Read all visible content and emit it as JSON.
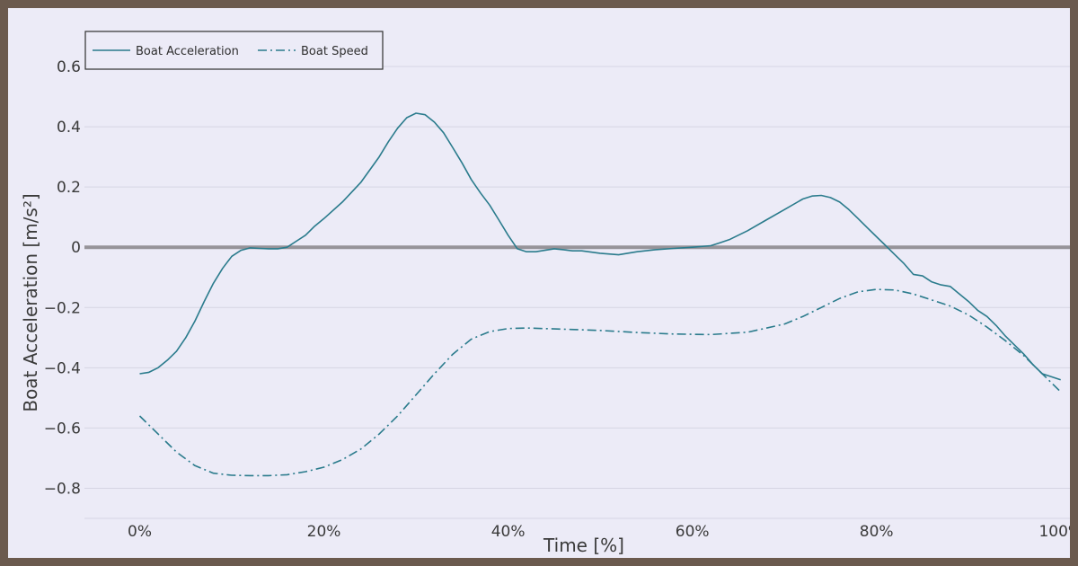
{
  "chart_data": {
    "type": "line",
    "xlabel": "Time [%]",
    "ylabel": "Boat Acceleration [m/s²]",
    "xlim": [
      -0.06,
      1.01
    ],
    "ylim": [
      -0.9,
      0.6
    ],
    "x_tick_values": [
      0,
      0.2,
      0.4,
      0.6,
      0.8,
      1.0
    ],
    "x_tick_labels": [
      "0%",
      "20%",
      "40%",
      "60%",
      "80%",
      "100%"
    ],
    "y_tick_values": [
      0.6,
      0.4,
      0.2,
      0,
      -0.2,
      -0.4,
      -0.6,
      -0.8
    ],
    "y_tick_labels": [
      "0.6",
      "0.4",
      "0.2",
      "0",
      "−0.2",
      "−0.4",
      "−0.6",
      "−0.8"
    ],
    "grid": true,
    "zero_line": true,
    "legend_position": "top-left",
    "series": [
      {
        "name": "Boat Acceleration",
        "color": "#2a7b8c",
        "dash": "solid",
        "x": [
          0,
          0.01,
          0.02,
          0.03,
          0.04,
          0.05,
          0.06,
          0.07,
          0.08,
          0.09,
          0.1,
          0.11,
          0.12,
          0.13,
          0.14,
          0.15,
          0.16,
          0.17,
          0.18,
          0.19,
          0.2,
          0.22,
          0.24,
          0.26,
          0.27,
          0.28,
          0.29,
          0.3,
          0.31,
          0.32,
          0.33,
          0.34,
          0.35,
          0.36,
          0.37,
          0.38,
          0.39,
          0.4,
          0.41,
          0.42,
          0.43,
          0.44,
          0.45,
          0.46,
          0.47,
          0.48,
          0.5,
          0.52,
          0.54,
          0.56,
          0.58,
          0.6,
          0.62,
          0.63,
          0.64,
          0.66,
          0.68,
          0.7,
          0.72,
          0.73,
          0.74,
          0.75,
          0.76,
          0.77,
          0.78,
          0.79,
          0.8,
          0.81,
          0.82,
          0.83,
          0.84,
          0.85,
          0.86,
          0.87,
          0.88,
          0.89,
          0.9,
          0.91,
          0.92,
          0.93,
          0.94,
          0.95,
          0.96,
          0.97,
          0.98,
          0.99,
          1.0
        ],
        "values": [
          -0.42,
          -0.415,
          -0.4,
          -0.375,
          -0.345,
          -0.3,
          -0.245,
          -0.18,
          -0.12,
          -0.07,
          -0.03,
          -0.01,
          -0.002,
          -0.004,
          -0.005,
          -0.005,
          0.0,
          0.02,
          0.04,
          0.07,
          0.095,
          0.15,
          0.215,
          0.3,
          0.35,
          0.395,
          0.43,
          0.445,
          0.44,
          0.415,
          0.38,
          0.33,
          0.28,
          0.225,
          0.18,
          0.14,
          0.09,
          0.04,
          -0.005,
          -0.015,
          -0.015,
          -0.01,
          -0.005,
          -0.008,
          -0.012,
          -0.012,
          -0.02,
          -0.025,
          -0.015,
          -0.008,
          -0.004,
          0.0,
          0.005,
          0.015,
          0.025,
          0.055,
          0.09,
          0.125,
          0.16,
          0.17,
          0.172,
          0.165,
          0.15,
          0.125,
          0.095,
          0.065,
          0.035,
          0.005,
          -0.025,
          -0.055,
          -0.09,
          -0.095,
          -0.115,
          -0.125,
          -0.13,
          -0.155,
          -0.18,
          -0.21,
          -0.23,
          -0.26,
          -0.295,
          -0.325,
          -0.355,
          -0.39,
          -0.42,
          -0.43,
          -0.44
        ]
      },
      {
        "name": "Boat Speed",
        "color": "#2a7b8c",
        "dash": "dashdot",
        "x": [
          0,
          0.02,
          0.04,
          0.06,
          0.08,
          0.1,
          0.12,
          0.14,
          0.16,
          0.18,
          0.2,
          0.22,
          0.24,
          0.26,
          0.28,
          0.3,
          0.32,
          0.34,
          0.36,
          0.38,
          0.4,
          0.42,
          0.46,
          0.5,
          0.54,
          0.58,
          0.62,
          0.66,
          0.7,
          0.72,
          0.74,
          0.76,
          0.78,
          0.8,
          0.82,
          0.84,
          0.86,
          0.88,
          0.9,
          0.92,
          0.94,
          0.96,
          0.98,
          1.0
        ],
        "values": [
          -0.56,
          -0.62,
          -0.68,
          -0.725,
          -0.75,
          -0.757,
          -0.758,
          -0.758,
          -0.755,
          -0.745,
          -0.73,
          -0.705,
          -0.67,
          -0.62,
          -0.56,
          -0.49,
          -0.42,
          -0.355,
          -0.305,
          -0.28,
          -0.27,
          -0.268,
          -0.272,
          -0.276,
          -0.283,
          -0.288,
          -0.29,
          -0.282,
          -0.255,
          -0.23,
          -0.2,
          -0.17,
          -0.148,
          -0.14,
          -0.142,
          -0.155,
          -0.175,
          -0.195,
          -0.225,
          -0.265,
          -0.31,
          -0.36,
          -0.42,
          -0.48
        ]
      }
    ]
  }
}
